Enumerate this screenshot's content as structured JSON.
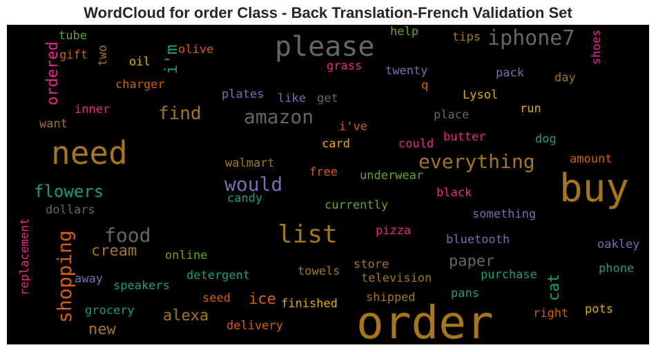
{
  "title": "WordCloud for order Class - Back Translation-French Validation Set",
  "colors": {
    "background": "#000000",
    "palette": [
      "#a6761d",
      "#666666",
      "#7570b3",
      "#1b9e77",
      "#e7298a",
      "#d95f02",
      "#66a61e",
      "#e6ab02"
    ]
  },
  "words": [
    {
      "text": "order",
      "color": "#a6761d"
    },
    {
      "text": "buy",
      "color": "#a6761d"
    },
    {
      "text": "need",
      "color": "#a6761d"
    },
    {
      "text": "please",
      "color": "#666666"
    },
    {
      "text": "list",
      "color": "#a6761d"
    },
    {
      "text": "iphone7",
      "color": "#666666"
    },
    {
      "text": "amazon",
      "color": "#666666"
    },
    {
      "text": "everything",
      "color": "#a6761d"
    },
    {
      "text": "would",
      "color": "#7570b3"
    },
    {
      "text": "food",
      "color": "#666666"
    },
    {
      "text": "shopping",
      "color": "#d95f02"
    },
    {
      "text": "find",
      "color": "#a6761d"
    },
    {
      "text": "flowers",
      "color": "#1b9e77"
    },
    {
      "text": "i'm",
      "color": "#1b9e77"
    },
    {
      "text": "ordered",
      "color": "#e7298a"
    },
    {
      "text": "cream",
      "color": "#a6761d"
    },
    {
      "text": "paper",
      "color": "#666666"
    },
    {
      "text": "alexa",
      "color": "#a6761d"
    },
    {
      "text": "ice",
      "color": "#d95f02"
    },
    {
      "text": "new",
      "color": "#a6761d"
    },
    {
      "text": "cat",
      "color": "#1b9e77"
    },
    {
      "text": "tube",
      "color": "#66a61e"
    },
    {
      "text": "gift",
      "color": "#d95f02"
    },
    {
      "text": "two",
      "color": "#a6761d"
    },
    {
      "text": "oil",
      "color": "#e6ab02"
    },
    {
      "text": "olive",
      "color": "#d95f02"
    },
    {
      "text": "help",
      "color": "#66a61e"
    },
    {
      "text": "tips",
      "color": "#a6761d"
    },
    {
      "text": "shoes",
      "color": "#e7298a"
    },
    {
      "text": "grass",
      "color": "#e7298a"
    },
    {
      "text": "twenty",
      "color": "#7570b3"
    },
    {
      "text": "pack",
      "color": "#7570b3"
    },
    {
      "text": "day",
      "color": "#a6761d"
    },
    {
      "text": "charger",
      "color": "#d95f02"
    },
    {
      "text": "plates",
      "color": "#7570b3"
    },
    {
      "text": "like",
      "color": "#7570b3"
    },
    {
      "text": "get",
      "color": "#666666"
    },
    {
      "text": "q",
      "color": "#d95f02"
    },
    {
      "text": "Lysol",
      "color": "#e6ab02"
    },
    {
      "text": "inner",
      "color": "#e7298a"
    },
    {
      "text": "place",
      "color": "#666666"
    },
    {
      "text": "run",
      "color": "#e6ab02"
    },
    {
      "text": "want",
      "color": "#a6761d"
    },
    {
      "text": "i've",
      "color": "#d95f02"
    },
    {
      "text": "card",
      "color": "#e6ab02"
    },
    {
      "text": "could",
      "color": "#e7298a"
    },
    {
      "text": "butter",
      "color": "#e7298a"
    },
    {
      "text": "dog",
      "color": "#1b9e77"
    },
    {
      "text": "walmart",
      "color": "#a6761d"
    },
    {
      "text": "free",
      "color": "#d95f02"
    },
    {
      "text": "amount",
      "color": "#d95f02"
    },
    {
      "text": "underwear",
      "color": "#66a61e"
    },
    {
      "text": "candy",
      "color": "#1b9e77"
    },
    {
      "text": "black",
      "color": "#e7298a"
    },
    {
      "text": "dollars",
      "color": "#666666"
    },
    {
      "text": "currently",
      "color": "#66a61e"
    },
    {
      "text": "something",
      "color": "#7570b3"
    },
    {
      "text": "replacement",
      "color": "#e7298a"
    },
    {
      "text": "pizza",
      "color": "#e7298a"
    },
    {
      "text": "bluetooth",
      "color": "#7570b3"
    },
    {
      "text": "oakley",
      "color": "#7570b3"
    },
    {
      "text": "online",
      "color": "#66a61e"
    },
    {
      "text": "store",
      "color": "#a6761d"
    },
    {
      "text": "phone",
      "color": "#1b9e77"
    },
    {
      "text": "away",
      "color": "#7570b3"
    },
    {
      "text": "towels",
      "color": "#a6761d"
    },
    {
      "text": "television",
      "color": "#a6761d"
    },
    {
      "text": "purchase",
      "color": "#1b9e77"
    },
    {
      "text": "speakers",
      "color": "#1b9e77"
    },
    {
      "text": "detergent",
      "color": "#1b9e77"
    },
    {
      "text": "seed",
      "color": "#d95f02"
    },
    {
      "text": "finished",
      "color": "#e6ab02"
    },
    {
      "text": "shipped",
      "color": "#a6761d"
    },
    {
      "text": "pans",
      "color": "#1b9e77"
    },
    {
      "text": "grocery",
      "color": "#1b9e77"
    },
    {
      "text": "pots",
      "color": "#e6ab02"
    },
    {
      "text": "right",
      "color": "#d95f02"
    },
    {
      "text": "delivery",
      "color": "#d95f02"
    }
  ]
}
